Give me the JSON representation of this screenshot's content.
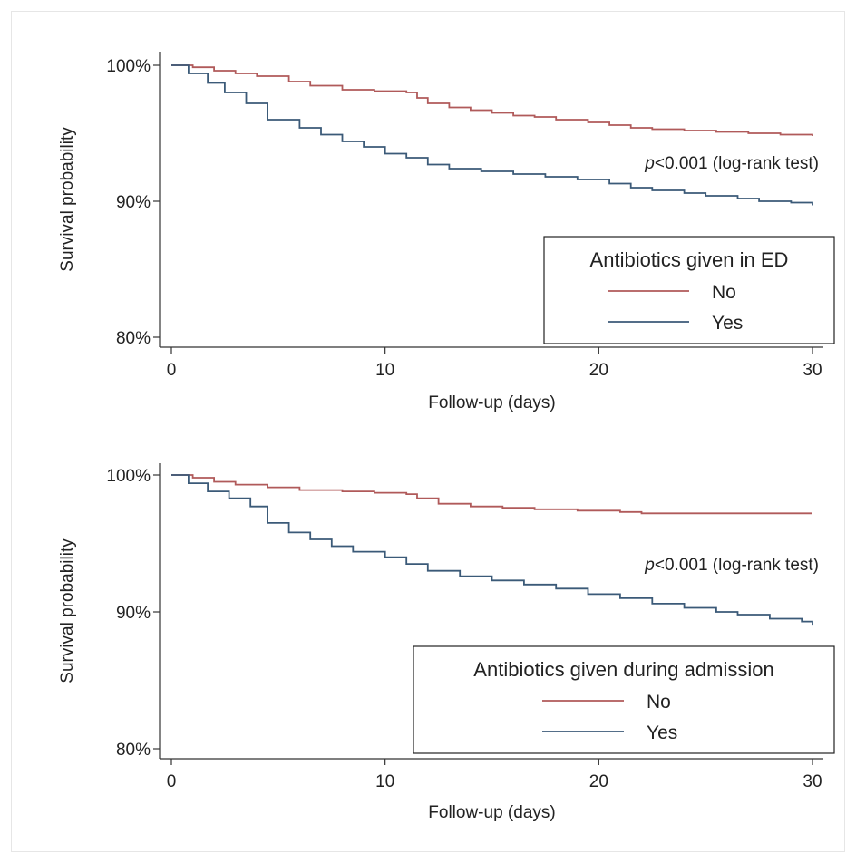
{
  "chart_data": [
    {
      "type": "line",
      "xlabel": "Follow-up (days)",
      "ylabel": "Survival probability",
      "xlim": [
        0,
        30
      ],
      "ylim": [
        0.79,
        1.01
      ],
      "x_ticks": [
        0,
        10,
        20,
        30
      ],
      "x_tick_labels": [
        "0",
        "10",
        "20",
        "30"
      ],
      "y_ticks": [
        0.8,
        0.9,
        1.0
      ],
      "y_tick_labels": [
        "80%",
        "90%",
        "100%"
      ],
      "grid": false,
      "annotation": {
        "italic": "p",
        "text": "<0.001 (log-rank test)"
      },
      "legend": {
        "title": "Antibiotics given in ED",
        "placement": "bottom-right",
        "entries": [
          "No",
          "Yes"
        ]
      },
      "series": [
        {
          "name": "No",
          "color": "#b05a5a",
          "x": [
            0,
            1,
            2,
            3,
            4,
            5.5,
            6.5,
            8,
            9.5,
            11,
            11.5,
            12,
            13,
            14,
            15,
            16,
            17,
            18,
            19.5,
            20.5,
            21.5,
            22.5,
            24,
            25.5,
            27,
            28.5,
            30
          ],
          "y": [
            1.0,
            0.9985,
            0.996,
            0.994,
            0.992,
            0.988,
            0.985,
            0.982,
            0.981,
            0.98,
            0.976,
            0.972,
            0.969,
            0.967,
            0.965,
            0.963,
            0.962,
            0.96,
            0.958,
            0.956,
            0.954,
            0.953,
            0.952,
            0.951,
            0.95,
            0.949,
            0.948
          ]
        },
        {
          "name": "Yes",
          "color": "#3b5a78",
          "x": [
            0,
            0.8,
            1.7,
            2.5,
            3.5,
            4.5,
            6,
            7,
            8,
            9,
            10,
            11,
            12,
            13,
            14.5,
            16,
            17.5,
            19,
            20.5,
            21.5,
            22.5,
            24,
            25,
            26.5,
            27.5,
            29,
            30
          ],
          "y": [
            1.0,
            0.994,
            0.987,
            0.98,
            0.972,
            0.96,
            0.954,
            0.949,
            0.944,
            0.94,
            0.935,
            0.932,
            0.927,
            0.924,
            0.922,
            0.92,
            0.918,
            0.916,
            0.913,
            0.91,
            0.908,
            0.906,
            0.904,
            0.902,
            0.9,
            0.899,
            0.897
          ]
        }
      ]
    },
    {
      "type": "line",
      "xlabel": "Follow-up (days)",
      "ylabel": "Survival probability",
      "xlim": [
        0,
        30
      ],
      "ylim": [
        0.79,
        1.01
      ],
      "x_ticks": [
        0,
        10,
        20,
        30
      ],
      "x_tick_labels": [
        "0",
        "10",
        "20",
        "30"
      ],
      "y_ticks": [
        0.8,
        0.9,
        1.0
      ],
      "y_tick_labels": [
        "80%",
        "90%",
        "100%"
      ],
      "grid": false,
      "annotation": {
        "italic": "p",
        "text": "<0.001 (log-rank test)"
      },
      "legend": {
        "title": "Antibiotics given during admission",
        "placement": "bottom-right",
        "entries": [
          "No",
          "Yes"
        ]
      },
      "series": [
        {
          "name": "No",
          "color": "#b05a5a",
          "x": [
            0,
            1,
            2,
            3,
            4.5,
            6,
            8,
            9.5,
            11,
            11.5,
            12.5,
            14,
            15.5,
            17,
            19,
            21,
            22,
            24,
            26,
            28,
            30
          ],
          "y": [
            1.0,
            0.998,
            0.995,
            0.993,
            0.991,
            0.989,
            0.988,
            0.987,
            0.986,
            0.983,
            0.979,
            0.977,
            0.976,
            0.975,
            0.974,
            0.973,
            0.972,
            0.972,
            0.972,
            0.972,
            0.972
          ]
        },
        {
          "name": "Yes",
          "color": "#3b5a78",
          "x": [
            0,
            0.8,
            1.7,
            2.7,
            3.7,
            4.5,
            5.5,
            6.5,
            7.5,
            8.5,
            10,
            11,
            12,
            13.5,
            15,
            16.5,
            18,
            19.5,
            21,
            22.5,
            24,
            25.5,
            26.5,
            28,
            29.5,
            30
          ],
          "y": [
            1.0,
            0.994,
            0.988,
            0.983,
            0.977,
            0.965,
            0.958,
            0.953,
            0.948,
            0.944,
            0.94,
            0.935,
            0.93,
            0.926,
            0.923,
            0.92,
            0.917,
            0.913,
            0.91,
            0.906,
            0.903,
            0.9,
            0.898,
            0.895,
            0.893,
            0.89
          ]
        }
      ]
    }
  ]
}
